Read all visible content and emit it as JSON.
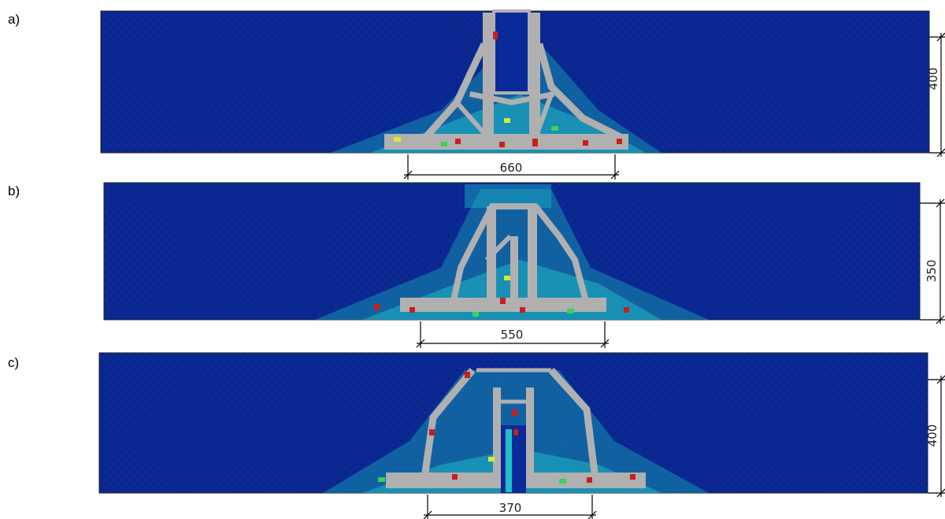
{
  "colors": {
    "background_mesh": "#0a2a9a",
    "mesh_line": "#1b1b40",
    "struts": "#b0b0b0",
    "cyan": "#1fc0c8",
    "teal": "#17a0b0",
    "green": "#3ad25a",
    "yellow": "#d8e83a",
    "red": "#c81e1e",
    "dimension_line": "#000000"
  },
  "panels": [
    {
      "label": "a)",
      "width_dimension": "660",
      "height_dimension": "400"
    },
    {
      "label": "b)",
      "width_dimension": "550",
      "height_dimension": "350"
    },
    {
      "label": "c)",
      "width_dimension": "370",
      "height_dimension": "400"
    }
  ]
}
